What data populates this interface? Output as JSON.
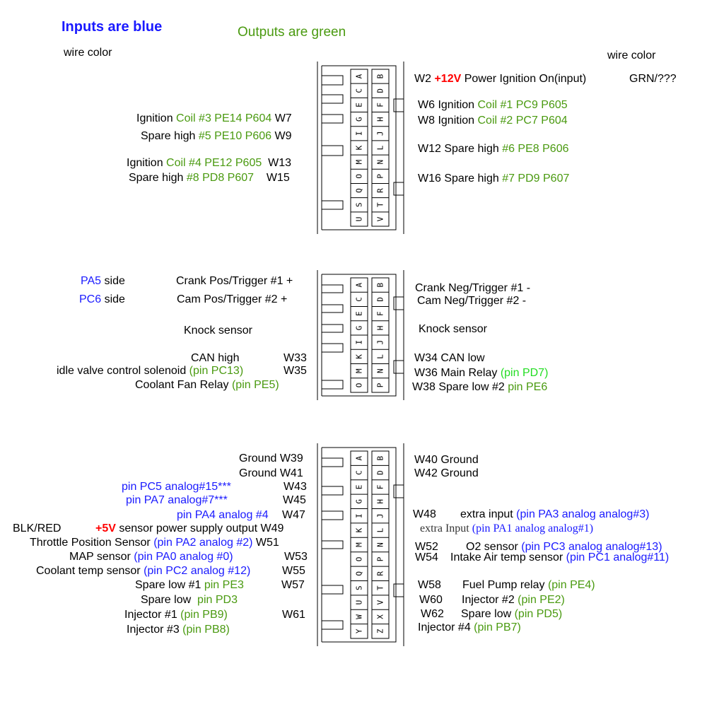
{
  "header": {
    "inputs_note": "Inputs are blue",
    "outputs_note": "Outputs are green",
    "wire_color_left": "wire color",
    "wire_color_right": "wire color"
  },
  "connector1": {
    "left": [
      {
        "a": "Ignition ",
        "b": "Coil #3 PE14 P604",
        "w": "W7"
      },
      {
        "a": "Spare high ",
        "b": "#5 PE10 P606",
        "w": "W9"
      },
      {
        "a": "Ignition ",
        "b": "Coil #4 PE12 P605",
        "w": "W13"
      },
      {
        "a": "Spare high ",
        "b": "#8 PD8 P607",
        "w": "W15"
      }
    ],
    "right": [
      {
        "w": "W2 ",
        "v": "+12V",
        "a": " Power Ignition On(input)",
        "wire": "GRN/???"
      },
      {
        "a": "W6 Ignition ",
        "b": "Coil #1 PC9 P605"
      },
      {
        "a": "W8 Ignition ",
        "b": "Coil #2 PC7 P604"
      },
      {
        "a": "W12 Spare high ",
        "b": "#6 PE8 P606"
      },
      {
        "a": "W16 Spare high ",
        "b": "#7 PD9 P607"
      }
    ],
    "pins_left": [
      "A",
      "C",
      "E",
      "G",
      "I",
      "K",
      "M",
      "O",
      "Q",
      "S",
      "U"
    ],
    "pins_right": [
      "B",
      "D",
      "F",
      "H",
      "J",
      "L",
      "N",
      "P",
      "R",
      "T",
      "V"
    ]
  },
  "connector2": {
    "left": {
      "pa5": "PA5",
      "side1": " side",
      "pc6": "PC6",
      "side2": " side",
      "crank_pos": "Crank Pos/Trigger #1 +",
      "cam_pos": "Cam Pos/Trigger #2 +",
      "knock": "Knock sensor",
      "can_high": "CAN high",
      "w33": "W33",
      "idle_a": "idle valve control solenoid ",
      "idle_b": "(pin PC13)",
      "w35": "W35",
      "fan_a": "Coolant Fan Relay ",
      "fan_b": "(pin PE5)"
    },
    "right": {
      "crank_neg": "Crank Neg/Trigger #1 -",
      "cam_neg": "Cam Neg/Trigger #2 -",
      "knock": "Knock sensor",
      "can_low": "W34 CAN low",
      "main_a": "W36 Main Relay ",
      "main_b": "(pin PD7)",
      "spare_a": "W38 Spare low #2 ",
      "spare_b": "pin PE6"
    },
    "pins_left": [
      "A",
      "C",
      "E",
      "G",
      "I",
      "K",
      "M",
      "O"
    ],
    "pins_right": [
      "B",
      "D",
      "F",
      "H",
      "J",
      "L",
      "N",
      "P"
    ]
  },
  "connector3": {
    "left": {
      "gnd39": "Ground W39",
      "gnd41": "Ground W41",
      "pc5": "pin PC5 analog#15***",
      "w43": "W43",
      "pa7": "pin PA7 analog#7***",
      "w45": "W45",
      "pa4": "pin PA4 analog #4",
      "w47": "W47",
      "blkred": "BLK/RED",
      "v5": "+5V",
      "supply": " sensor power supply output ",
      "w49": "W49",
      "tps_a": "Throttle Position Sensor ",
      "tps_b": "(pin PA2 analog #2)",
      "w51": "W51",
      "map_a": "MAP sensor ",
      "map_b": "(pin PA0 analog #0)",
      "w53": "W53",
      "clt_a": "Coolant temp sensor ",
      "clt_b": "(pin PC2 analog #12)",
      "w55": "W55",
      "sl1_a": "Spare low #1 ",
      "sl1_b": "pin PE3",
      "w57": "W57",
      "sl_a": "Spare low ",
      "sl_b": "pin PD3",
      "inj1_a": "Injector #1 ",
      "inj1_b": "(pin PB9)",
      "w61": "W61",
      "inj3_a": "Injector #3 ",
      "inj3_b": "(pin PB8)"
    },
    "right": {
      "gnd40": "W40 Ground",
      "gnd42": "W42 Ground",
      "w48": "W48",
      "extra_a": "extra input ",
      "extra_b": "(pin PA3 analog analog#3)",
      "extra2_a": "extra Input ",
      "extra2_b": "(pin PA1 analog analog#1)",
      "w52": "W52",
      "o2_a": "O2 sensor ",
      "o2_b": "(pin PC3 analog analog#13)",
      "w54": "W54",
      "iat_a": "Intake Air temp sensor ",
      "iat_b": "(pin PC1 analog#11)",
      "w58": "W58",
      "fp_a": "Fuel Pump relay ",
      "fp_b": "(pin PE4)",
      "w60": "W60",
      "inj2_a": "Injector #2 ",
      "inj2_b": "(pin PE2)",
      "w62": "W62",
      "sl_a": "Spare low ",
      "sl_b": "(pin PD5)",
      "inj4_a": "Injector #4 ",
      "inj4_b": "(pin PB7)"
    },
    "pins_left": [
      "A",
      "C",
      "E",
      "G",
      "I",
      "K",
      "M",
      "O",
      "Q",
      "S",
      "U",
      "W",
      "Y"
    ],
    "pins_right": [
      "B",
      "D",
      "F",
      "H",
      "J",
      "L",
      "N",
      "P",
      "R",
      "T",
      "V",
      "X",
      "Z"
    ]
  },
  "colors": {
    "input": "#1a1aff",
    "output": "#4a9a10",
    "output_bright": "#22dd22",
    "voltage": "#ff0000"
  }
}
